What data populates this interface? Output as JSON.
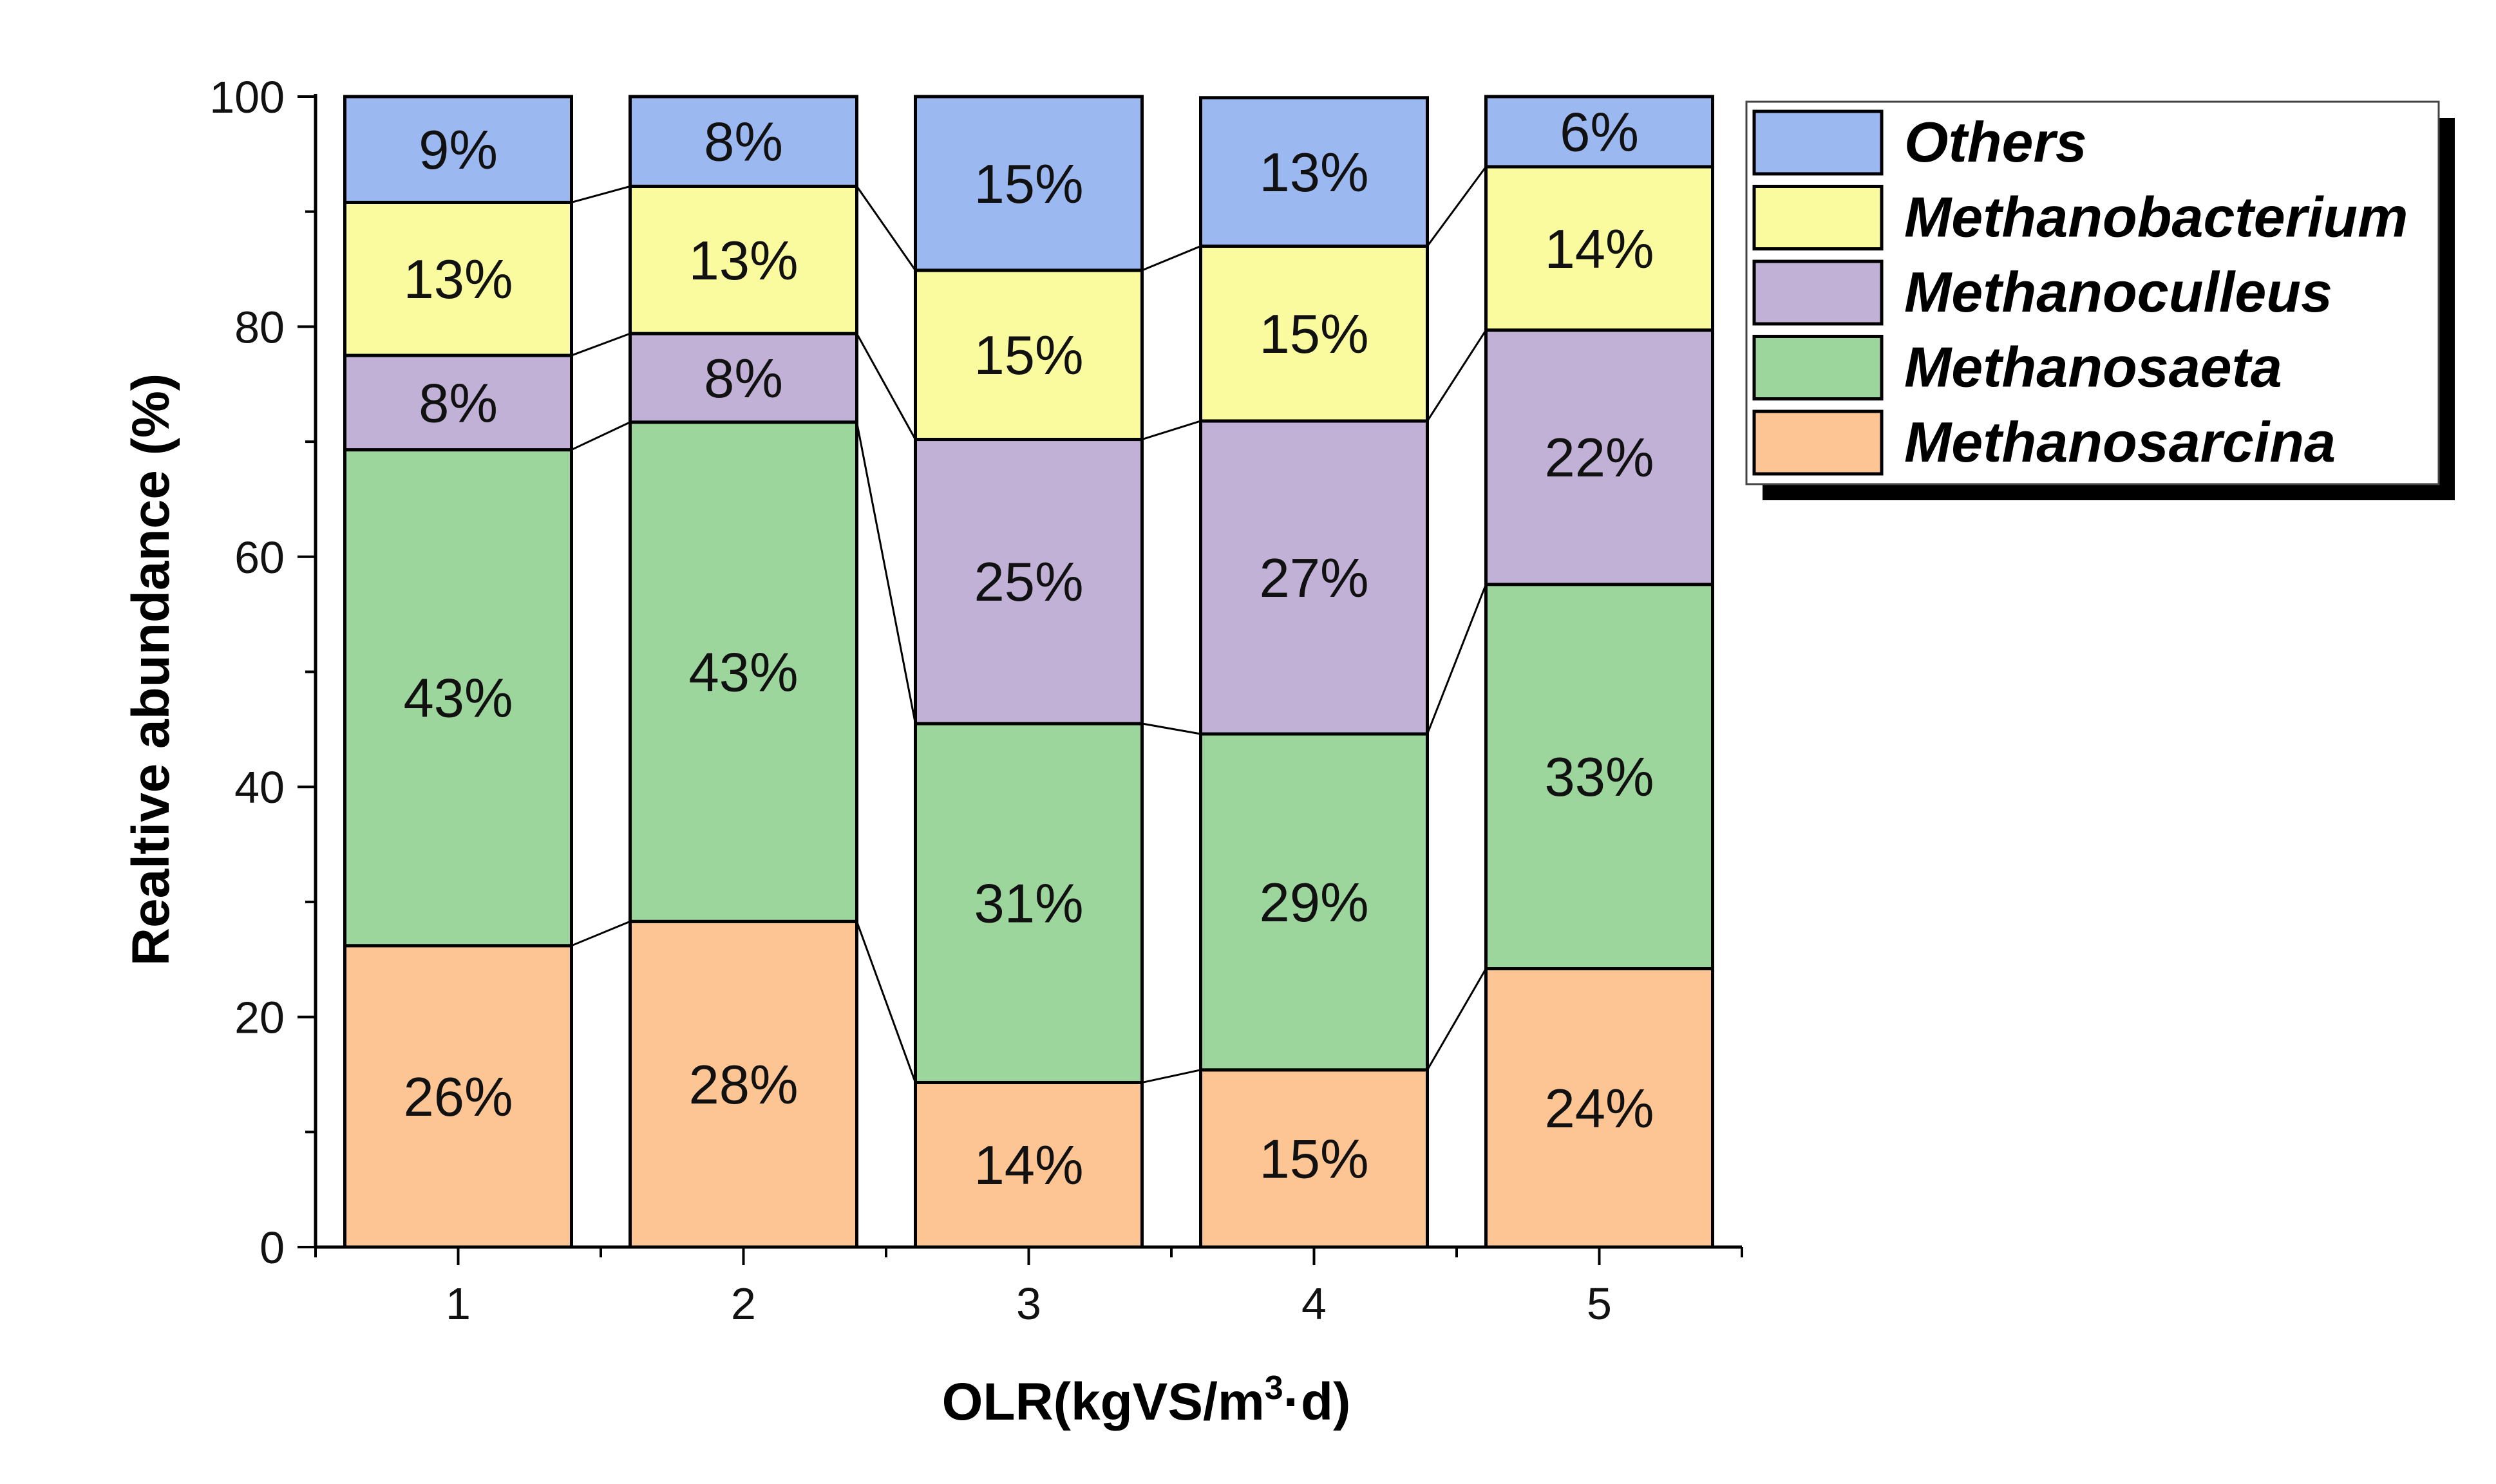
{
  "chart_data": {
    "type": "bar",
    "stacked": true,
    "title": "",
    "xlabel": "OLR(kgVS/m³·d)",
    "xlabel_parts": {
      "main": "OLR(kgVS/m",
      "sup": "3",
      "tail": "·d)"
    },
    "ylabel": "Realtive abundance (%)",
    "ylim": [
      0,
      100
    ],
    "yticks": [
      0,
      20,
      40,
      60,
      80,
      100
    ],
    "grid": false,
    "legend_position": "top-right",
    "categories": [
      "1",
      "2",
      "3",
      "4",
      "5"
    ],
    "series": [
      {
        "name": "Methanosarcina",
        "color": "#FDC593",
        "values": [
          26.2,
          28.3,
          14.3,
          15.4,
          24.2
        ],
        "labels": [
          "26%",
          "28%",
          "14%",
          "15%",
          "24%"
        ]
      },
      {
        "name": "Methanosaeta",
        "color": "#9DD69C",
        "values": [
          43.1,
          43.4,
          31.2,
          29.2,
          33.4
        ],
        "labels": [
          "43%",
          "43%",
          "31%",
          "29%",
          "33%"
        ]
      },
      {
        "name": "Methanoculleus",
        "color": "#C1B1D6",
        "values": [
          8.2,
          7.7,
          24.7,
          27.2,
          22.1
        ],
        "labels": [
          "8%",
          "8%",
          "25%",
          "27%",
          "22%"
        ]
      },
      {
        "name": "Methanobacterium",
        "color": "#FAFA9E",
        "values": [
          13.3,
          12.8,
          14.7,
          15.2,
          14.2
        ],
        "labels": [
          "13%",
          "13%",
          "15%",
          "15%",
          "14%"
        ]
      },
      {
        "name": "Others",
        "color": "#9CB8F0",
        "values": [
          9.2,
          7.8,
          15.1,
          12.9,
          6.1
        ],
        "labels": [
          "9%",
          "8%",
          "15%",
          "13%",
          "6%"
        ]
      }
    ],
    "legend_order": [
      "Others",
      "Methanobacterium",
      "Methanoculleus",
      "Methanosaeta",
      "Methanosarcina"
    ]
  }
}
